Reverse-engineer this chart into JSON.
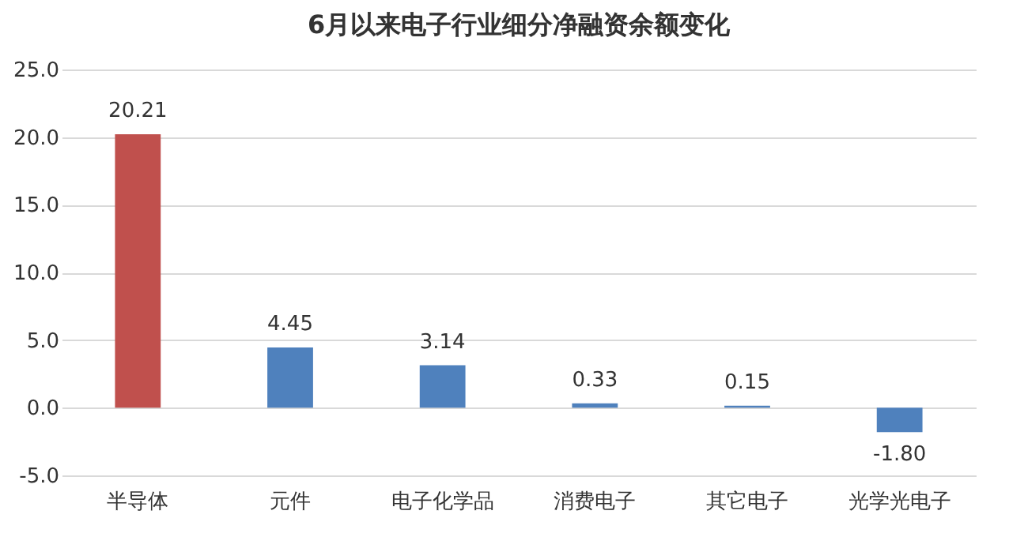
{
  "chart_data": {
    "type": "bar",
    "title": "6月以来电子行业细分净融资余额变化",
    "categories": [
      "半导体",
      "元件",
      "电子化学品",
      "消费电子",
      "其它电子",
      "光学光电子"
    ],
    "values": [
      20.21,
      4.45,
      3.14,
      0.33,
      0.15,
      -1.8
    ],
    "colors": [
      "#c0504d",
      "#4f81bd",
      "#4f81bd",
      "#4f81bd",
      "#4f81bd",
      "#4f81bd"
    ],
    "value_labels": [
      "20.21",
      "4.45",
      "3.14",
      "0.33",
      "0.15",
      "-1.80"
    ],
    "ylim": [
      -5,
      25
    ],
    "yticks": [
      {
        "value": -5,
        "label": "-5.0"
      },
      {
        "value": 0,
        "label": "0.0"
      },
      {
        "value": 5,
        "label": "5.0"
      },
      {
        "value": 10,
        "label": "10.0"
      },
      {
        "value": 15,
        "label": "15.0"
      },
      {
        "value": 20,
        "label": "20.0"
      },
      {
        "value": 25,
        "label": "25.0"
      }
    ],
    "grid": "y"
  }
}
